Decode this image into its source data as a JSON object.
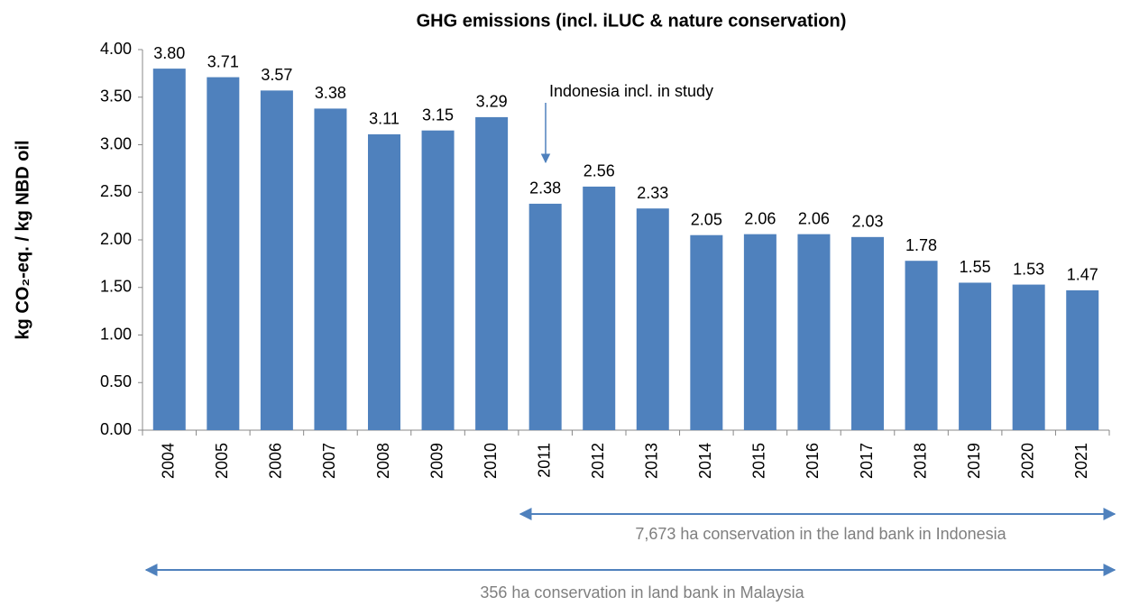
{
  "chart_data": {
    "type": "bar",
    "title": "GHG emissions (incl. iLUC &  nature conservation)",
    "ylabel": "kg CO₂-eq. / kg NBD oil",
    "categories": [
      "2004",
      "2005",
      "2006",
      "2007",
      "2008",
      "2009",
      "2010",
      "2011",
      "2012",
      "2013",
      "2014",
      "2015",
      "2016",
      "2017",
      "2018",
      "2019",
      "2020",
      "2021"
    ],
    "values": [
      3.8,
      3.71,
      3.57,
      3.38,
      3.11,
      3.15,
      3.29,
      2.38,
      2.56,
      2.33,
      2.05,
      2.06,
      2.06,
      2.03,
      1.78,
      1.55,
      1.53,
      1.47
    ],
    "value_labels": [
      "3.80",
      "3.71",
      "3.57",
      "3.38",
      "3.11",
      "3.15",
      "3.29",
      "2.38",
      "2.56",
      "2.33",
      "2.05",
      "2.06",
      "2.06",
      "2.03",
      "1.78",
      "1.55",
      "1.53",
      "1.47"
    ],
    "color": "#4f81bd",
    "ylim": [
      0,
      4
    ],
    "yticks": [
      {
        "value": 0,
        "label": "0.00"
      },
      {
        "value": 0.5,
        "label": "0.50"
      },
      {
        "value": 1,
        "label": "1.00"
      },
      {
        "value": 1.5,
        "label": "1.50"
      },
      {
        "value": 2,
        "label": "2.00"
      },
      {
        "value": 2.5,
        "label": "2.50"
      },
      {
        "value": 3,
        "label": "3.00"
      },
      {
        "value": 3.5,
        "label": "3.50"
      },
      {
        "value": 4,
        "label": "4.00"
      }
    ],
    "grid": false,
    "annotations": [
      "Indonesia incl. in study",
      "7,673 ha conservation in the land bank in Indonesia",
      "356 ha conservation in land bank in Malaysia"
    ]
  }
}
